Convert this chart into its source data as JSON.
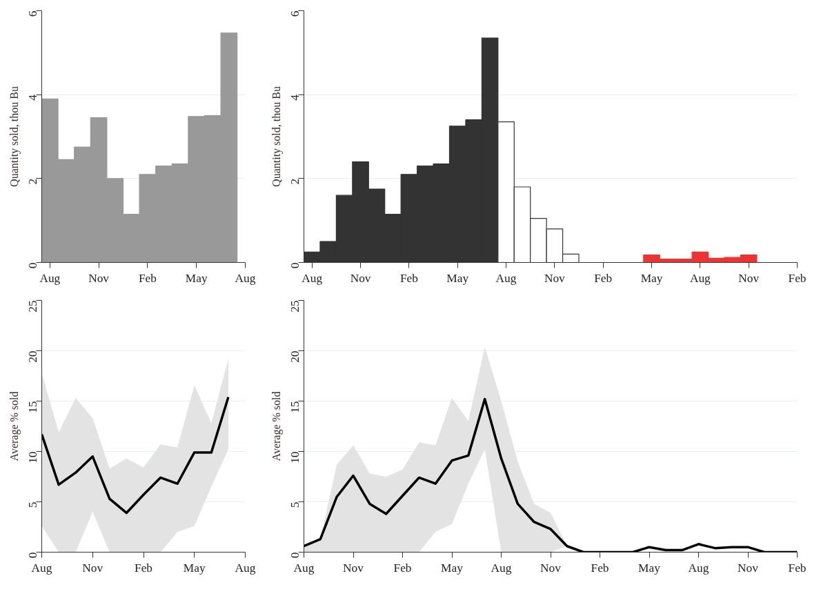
{
  "chart_data": [
    {
      "type": "bar",
      "ylabel": "Quantity sold, thou Bu",
      "ylim": [
        0,
        6
      ],
      "yticks": [
        0,
        2,
        4,
        6
      ],
      "grid": "y",
      "categories": [
        "Aug",
        null,
        null,
        "Nov",
        null,
        null,
        "Feb",
        null,
        null,
        "May",
        null,
        null,
        "Aug"
      ],
      "series": [
        {
          "color": "#999999",
          "values": [
            3.9,
            2.45,
            2.75,
            3.45,
            2.0,
            1.15,
            2.1,
            2.3,
            2.35,
            3.48,
            3.5,
            5.47,
            null
          ]
        }
      ]
    },
    {
      "type": "bar",
      "ylabel": "Quantity sold, thou Bu",
      "ylim": [
        0,
        6
      ],
      "yticks": [
        0,
        2,
        4,
        6
      ],
      "grid": "y",
      "categories": [
        "Aug",
        null,
        null,
        "Nov",
        null,
        null,
        "Feb",
        null,
        null,
        "May",
        null,
        null,
        "Aug",
        null,
        null,
        "Nov",
        null,
        null,
        "Feb",
        null,
        null,
        "May",
        null,
        null,
        "Aug",
        null,
        null,
        "Nov",
        null,
        null,
        "Feb"
      ],
      "series": [
        {
          "color": "#333333",
          "values": [
            0.25,
            0.5,
            1.6,
            2.4,
            1.75,
            1.15,
            2.1,
            2.3,
            2.35,
            3.25,
            3.4,
            5.35,
            null,
            null,
            null,
            null,
            null,
            null,
            null,
            null,
            null,
            null,
            null,
            null,
            null,
            null,
            null,
            null,
            null,
            null,
            null
          ]
        },
        {
          "color": "#ffffff",
          "values": [
            null,
            null,
            null,
            null,
            null,
            null,
            null,
            null,
            null,
            null,
            null,
            null,
            3.35,
            1.8,
            1.05,
            0.8,
            0.2,
            null,
            null,
            null,
            null,
            null,
            null,
            null,
            null,
            null,
            null,
            null,
            null,
            null,
            null
          ]
        },
        {
          "color": "#ee3333",
          "values": [
            null,
            null,
            null,
            null,
            null,
            null,
            null,
            null,
            null,
            null,
            null,
            null,
            null,
            null,
            null,
            null,
            null,
            null,
            null,
            null,
            null,
            0.18,
            0.08,
            0.08,
            0.25,
            0.1,
            0.12,
            0.18,
            null,
            null,
            null
          ]
        }
      ]
    },
    {
      "type": "line",
      "ylabel": "Average % sold",
      "ylim": [
        0,
        25
      ],
      "yticks": [
        0,
        5,
        10,
        15,
        20,
        25
      ],
      "grid": "y",
      "categories": [
        "Aug",
        null,
        null,
        "Nov",
        null,
        null,
        "Feb",
        null,
        null,
        "May",
        null,
        null,
        "Aug"
      ],
      "series": [
        {
          "color": "#000000",
          "values": [
            11.7,
            6.7,
            7.9,
            9.5,
            5.3,
            3.9,
            5.7,
            7.4,
            6.8,
            9.9,
            9.9,
            15.4,
            null
          ],
          "upper": [
            17.8,
            11.9,
            15.3,
            13.3,
            8.3,
            9.3,
            8.4,
            10.7,
            10.4,
            16.6,
            12.8,
            19.2,
            null
          ],
          "lower": [
            2.6,
            0,
            0,
            4.0,
            0,
            0,
            0,
            0,
            2.0,
            2.6,
            6.5,
            10.2,
            null
          ]
        }
      ]
    },
    {
      "type": "line",
      "ylabel": "Average % sold",
      "ylim": [
        0,
        25
      ],
      "yticks": [
        0,
        5,
        10,
        15,
        20,
        25
      ],
      "grid": "y",
      "categories": [
        "Aug",
        null,
        null,
        "Nov",
        null,
        null,
        "Feb",
        null,
        null,
        "May",
        null,
        null,
        "Aug",
        null,
        null,
        "Nov",
        null,
        null,
        "Feb",
        null,
        null,
        "May",
        null,
        null,
        "Aug",
        null,
        null,
        "Nov",
        null,
        null,
        "Feb"
      ],
      "series": [
        {
          "color": "#000000",
          "values": [
            0.6,
            1.3,
            5.5,
            7.6,
            4.8,
            3.8,
            5.6,
            7.4,
            6.8,
            9.1,
            9.6,
            15.2,
            9.3,
            4.8,
            3.0,
            2.3,
            0.6,
            0,
            0,
            0,
            0,
            0.5,
            0.2,
            0.2,
            0.8,
            0.4,
            0.5,
            0.5,
            0,
            0,
            0
          ],
          "upper": [
            0.6,
            1.3,
            8.7,
            10.6,
            7.8,
            7.5,
            8.2,
            10.9,
            10.6,
            15.3,
            13.0,
            20.4,
            15.0,
            9.0,
            4.8,
            3.9,
            0.6,
            0,
            0,
            0,
            0,
            0.5,
            0.2,
            0.2,
            0.8,
            0.4,
            0.5,
            0.5,
            0,
            0,
            0
          ],
          "lower": [
            0,
            0,
            0,
            0,
            0,
            0,
            0,
            0,
            2.0,
            2.8,
            6.8,
            10.2,
            0,
            0,
            0,
            0,
            0.6,
            0,
            0,
            0,
            0,
            0.5,
            0.2,
            0.2,
            0.8,
            0.4,
            0.5,
            0.5,
            0,
            0,
            0
          ]
        }
      ]
    }
  ]
}
